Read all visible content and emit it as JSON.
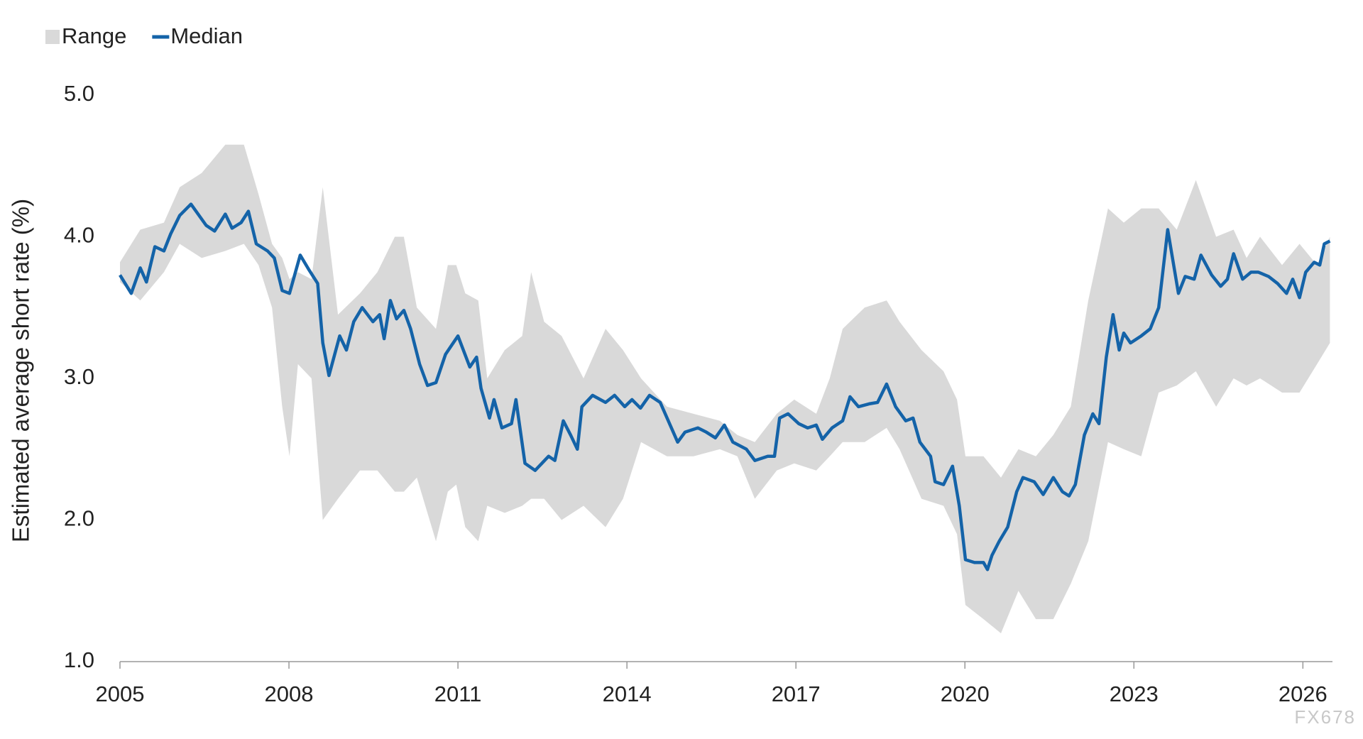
{
  "chart_data": {
    "type": "line",
    "y_label": "Estimated average short rate (%)",
    "watermark": "FX678",
    "xlim": [
      2005,
      2026.5
    ],
    "xticks": [
      2005,
      2008,
      2011,
      2014,
      2017,
      2020,
      2023,
      2026
    ],
    "ylim": [
      1,
      5
    ],
    "yticks": [
      {
        "value": 1,
        "label": "1.0"
      },
      {
        "value": 2,
        "label": "2.0"
      },
      {
        "value": 3,
        "label": "3.0"
      },
      {
        "value": 4,
        "label": "4.0"
      },
      {
        "value": 5,
        "label": "5.0"
      }
    ],
    "legend": "top-left",
    "series": [
      {
        "name": "Range",
        "type": "area",
        "color": "#d9d9d9",
        "x": [
          2005.0,
          2005.36,
          2005.78,
          2006.06,
          2006.45,
          2006.87,
          2007.2,
          2007.46,
          2007.7,
          2007.88,
          2008.01,
          2008.16,
          2008.4,
          2008.6,
          2008.87,
          2009.26,
          2009.57,
          2009.88,
          2010.04,
          2010.27,
          2010.61,
          2010.82,
          2010.97,
          2011.13,
          2011.36,
          2011.52,
          2011.83,
          2012.14,
          2012.3,
          2012.53,
          2012.84,
          2013.23,
          2013.62,
          2013.93,
          2014.25,
          2014.71,
          2015.18,
          2015.65,
          2015.96,
          2016.27,
          2016.66,
          2016.97,
          2017.36,
          2017.6,
          2017.83,
          2018.22,
          2018.61,
          2018.84,
          2019.23,
          2019.62,
          2019.86,
          2020.01,
          2020.33,
          2020.64,
          2020.95,
          2021.26,
          2021.57,
          2021.88,
          2022.19,
          2022.54,
          2022.82,
          2023.13,
          2023.44,
          2023.76,
          2024.1,
          2024.46,
          2024.77,
          2025.0,
          2025.24,
          2025.63,
          2025.94,
          2026.25,
          2026.48
        ],
        "high": [
          3.82,
          4.05,
          4.1,
          4.35,
          4.45,
          4.65,
          4.65,
          4.3,
          3.95,
          3.85,
          3.7,
          3.75,
          3.7,
          4.35,
          3.45,
          3.6,
          3.75,
          4.0,
          4.0,
          3.5,
          3.35,
          3.8,
          3.8,
          3.6,
          3.55,
          3.0,
          3.2,
          3.3,
          3.75,
          3.4,
          3.3,
          3.0,
          3.35,
          3.2,
          3.0,
          2.8,
          2.75,
          2.7,
          2.6,
          2.55,
          2.75,
          2.85,
          2.75,
          3.0,
          3.35,
          3.5,
          3.55,
          3.4,
          3.2,
          3.05,
          2.85,
          2.45,
          2.45,
          2.3,
          2.5,
          2.45,
          2.6,
          2.8,
          3.55,
          4.2,
          4.1,
          4.2,
          4.2,
          4.05,
          4.4,
          4.0,
          4.05,
          3.85,
          4.0,
          3.8,
          3.95,
          3.8,
          4.0
        ],
        "low": [
          3.68,
          3.55,
          3.75,
          3.95,
          3.85,
          3.9,
          3.95,
          3.8,
          3.5,
          2.8,
          2.45,
          3.1,
          3.0,
          2.0,
          2.15,
          2.35,
          2.35,
          2.2,
          2.2,
          2.3,
          1.85,
          2.2,
          2.25,
          1.95,
          1.85,
          2.1,
          2.05,
          2.1,
          2.15,
          2.15,
          2.0,
          2.1,
          1.95,
          2.15,
          2.55,
          2.45,
          2.45,
          2.5,
          2.45,
          2.15,
          2.35,
          2.4,
          2.35,
          2.45,
          2.55,
          2.55,
          2.65,
          2.5,
          2.15,
          2.1,
          1.9,
          1.4,
          1.3,
          1.2,
          1.5,
          1.3,
          1.3,
          1.55,
          1.85,
          2.55,
          2.5,
          2.45,
          2.9,
          2.95,
          3.05,
          2.8,
          3.0,
          2.95,
          3.0,
          2.9,
          2.9,
          3.1,
          3.25
        ]
      },
      {
        "name": "Median",
        "type": "line",
        "color": "#1463a8",
        "x": [
          2005.0,
          2005.2,
          2005.36,
          2005.47,
          2005.62,
          2005.78,
          2005.9,
          2006.06,
          2006.26,
          2006.53,
          2006.68,
          2006.87,
          2006.99,
          2007.15,
          2007.28,
          2007.42,
          2007.62,
          2007.74,
          2007.88,
          2008.01,
          2008.2,
          2008.35,
          2008.51,
          2008.6,
          2008.71,
          2008.9,
          2009.02,
          2009.15,
          2009.3,
          2009.49,
          2009.61,
          2009.69,
          2009.8,
          2009.91,
          2010.04,
          2010.16,
          2010.32,
          2010.46,
          2010.61,
          2010.78,
          2011.0,
          2011.21,
          2011.33,
          2011.41,
          2011.56,
          2011.64,
          2011.78,
          2011.95,
          2012.03,
          2012.19,
          2012.37,
          2012.61,
          2012.72,
          2012.87,
          2013.0,
          2013.12,
          2013.2,
          2013.39,
          2013.62,
          2013.78,
          2013.96,
          2014.09,
          2014.24,
          2014.4,
          2014.59,
          2014.79,
          2014.9,
          2015.03,
          2015.26,
          2015.41,
          2015.57,
          2015.73,
          2015.88,
          2016.12,
          2016.27,
          2016.5,
          2016.62,
          2016.71,
          2016.86,
          2017.05,
          2017.21,
          2017.36,
          2017.47,
          2017.64,
          2017.83,
          2017.96,
          2018.11,
          2018.3,
          2018.45,
          2018.61,
          2018.77,
          2018.95,
          2019.08,
          2019.2,
          2019.39,
          2019.47,
          2019.62,
          2019.78,
          2019.9,
          2020.01,
          2020.17,
          2020.33,
          2020.4,
          2020.48,
          2020.61,
          2020.76,
          2020.92,
          2021.03,
          2021.23,
          2021.39,
          2021.57,
          2021.73,
          2021.85,
          2021.96,
          2022.12,
          2022.27,
          2022.38,
          2022.51,
          2022.63,
          2022.74,
          2022.82,
          2022.94,
          2023.13,
          2023.29,
          2023.44,
          2023.6,
          2023.79,
          2023.91,
          2024.07,
          2024.19,
          2024.38,
          2024.54,
          2024.66,
          2024.77,
          2024.93,
          2025.08,
          2025.21,
          2025.39,
          2025.55,
          2025.71,
          2025.82,
          2025.94,
          2026.05,
          2026.2,
          2026.3,
          2026.38,
          2026.48
        ],
        "values": [
          3.73,
          3.6,
          3.78,
          3.68,
          3.93,
          3.9,
          4.02,
          4.15,
          4.23,
          4.08,
          4.04,
          4.16,
          4.06,
          4.1,
          4.18,
          3.95,
          3.9,
          3.85,
          3.62,
          3.6,
          3.87,
          3.77,
          3.67,
          3.25,
          3.02,
          3.3,
          3.2,
          3.4,
          3.5,
          3.4,
          3.45,
          3.28,
          3.55,
          3.42,
          3.48,
          3.35,
          3.1,
          2.95,
          2.97,
          3.17,
          3.3,
          3.08,
          3.15,
          2.93,
          2.72,
          2.85,
          2.65,
          2.68,
          2.85,
          2.4,
          2.35,
          2.45,
          2.42,
          2.7,
          2.6,
          2.5,
          2.8,
          2.88,
          2.83,
          2.88,
          2.8,
          2.85,
          2.79,
          2.88,
          2.83,
          2.65,
          2.55,
          2.62,
          2.65,
          2.62,
          2.58,
          2.67,
          2.55,
          2.5,
          2.42,
          2.45,
          2.45,
          2.72,
          2.75,
          2.68,
          2.65,
          2.67,
          2.57,
          2.65,
          2.7,
          2.87,
          2.8,
          2.82,
          2.83,
          2.96,
          2.8,
          2.7,
          2.72,
          2.55,
          2.45,
          2.27,
          2.25,
          2.38,
          2.1,
          1.72,
          1.7,
          1.7,
          1.65,
          1.75,
          1.85,
          1.95,
          2.2,
          2.3,
          2.27,
          2.18,
          2.3,
          2.2,
          2.17,
          2.25,
          2.6,
          2.75,
          2.68,
          3.15,
          3.45,
          3.2,
          3.32,
          3.25,
          3.3,
          3.35,
          3.5,
          4.05,
          3.6,
          3.72,
          3.7,
          3.87,
          3.73,
          3.65,
          3.7,
          3.88,
          3.7,
          3.75,
          3.75,
          3.72,
          3.67,
          3.6,
          3.7,
          3.57,
          3.75,
          3.82,
          3.8,
          3.95,
          3.97
        ]
      }
    ]
  }
}
